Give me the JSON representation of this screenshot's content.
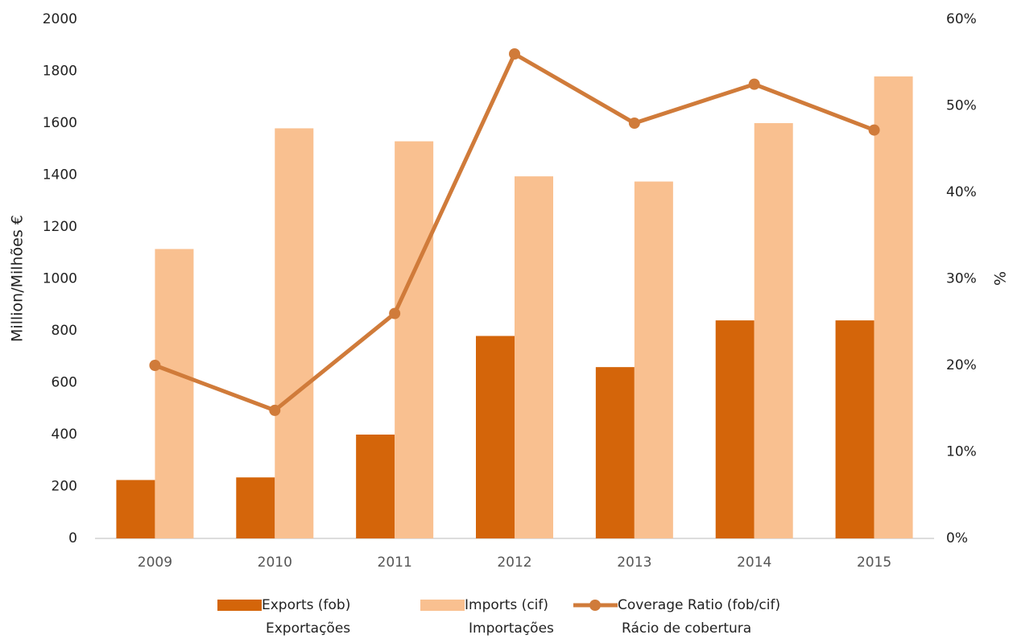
{
  "chart_data": {
    "type": "bar_line",
    "categories": [
      "2009",
      "2010",
      "2011",
      "2012",
      "2013",
      "2014",
      "2015"
    ],
    "y_label": "Million/Milhões €",
    "y2_label": "%",
    "ylim": [
      0,
      2000
    ],
    "yticks": [
      0,
      200,
      400,
      600,
      800,
      1000,
      1200,
      1400,
      1600,
      1800,
      2000
    ],
    "y2lim": [
      0,
      60
    ],
    "y2ticks": [
      {
        "value": 0,
        "label": "0%"
      },
      {
        "value": 10,
        "label": "10%"
      },
      {
        "value": 20,
        "label": "20%"
      },
      {
        "value": 30,
        "label": "30%"
      },
      {
        "value": 40,
        "label": "40%"
      },
      {
        "value": 50,
        "label": "50%"
      },
      {
        "value": 60,
        "label": "60%"
      }
    ],
    "grid": false,
    "series": [
      {
        "name": "Exports (fob)",
        "name_pt": "Exportações",
        "type": "bar",
        "color": "#d4650a",
        "values": [
          225,
          235,
          400,
          780,
          660,
          840,
          840
        ]
      },
      {
        "name": "Imports (cif)",
        "name_pt": "Importações",
        "type": "bar",
        "color": "#f9c090",
        "values": [
          1115,
          1580,
          1530,
          1395,
          1375,
          1600,
          1780
        ]
      },
      {
        "name": "Coverage Ratio (fob/cif)",
        "name_pt": "Rácio de cobertura",
        "type": "line",
        "axis": "y2",
        "color": "#d07b3a",
        "values": [
          20,
          14.8,
          26,
          56,
          48,
          52.5,
          47.2
        ]
      }
    ]
  }
}
